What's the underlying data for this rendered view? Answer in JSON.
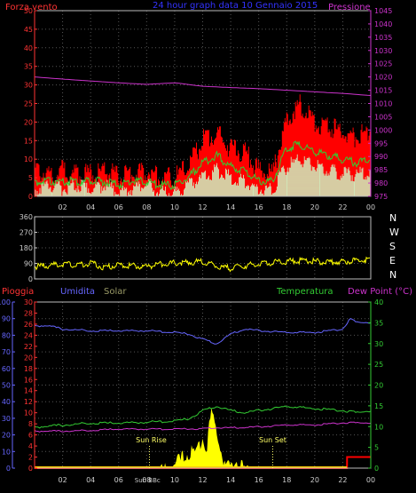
{
  "header": {
    "left": "Forza vento",
    "center": "24 hour graph data  10 Gennaio 2015",
    "right": "Pressione"
  },
  "panel2_dirs": [
    "N",
    "W",
    "S",
    "E",
    "N"
  ],
  "panel3_labels": {
    "pioggia": "Pioggia",
    "umidita": "Umidita",
    "solar": "Solar",
    "temperatura": "Temperatura",
    "dewpoint": "Dew Point (°C)",
    "sunrise": "Sun Rise",
    "sunset": "Sun Set",
    "sunbbc": "Sun BBc"
  },
  "colors": {
    "wind_gust": "#ff0000",
    "wind_avg": "#33cc33",
    "wind_min": "#ccffcc",
    "pressure": "#cc33cc",
    "direction": "#ffff00",
    "humidity": "#6666ff",
    "temperature": "#33cc33",
    "dewpoint": "#cc33cc",
    "solar": "#ffff00",
    "rain": "#ff0000",
    "axis_left_top": "#ff3333",
    "axis_right_top": "#cc33cc",
    "axis_humidity": "#6666ff",
    "axis_rain": "#ff3333",
    "axis_temp": "#33cc33",
    "header_center": "#3333ff"
  },
  "chart_data": [
    {
      "type": "area",
      "title": "24 hour graph data  10 Gennaio 2015",
      "x_ticks": [
        "02",
        "04",
        "06",
        "08",
        "10",
        "12",
        "14",
        "16",
        "18",
        "20",
        "22",
        "00"
      ],
      "y_left": {
        "label": "Forza vento",
        "ticks": [
          0,
          5,
          10,
          15,
          20,
          25,
          30,
          35,
          40,
          45,
          50
        ],
        "range": [
          0,
          50
        ]
      },
      "y_right": {
        "label": "Pressione",
        "ticks": [
          975,
          980,
          985,
          990,
          995,
          1000,
          1005,
          1010,
          1015,
          1020,
          1025,
          1030,
          1035,
          1040,
          1045
        ],
        "range": [
          975,
          1045
        ]
      },
      "series": [
        {
          "name": "gust",
          "hours": [
            0,
            1,
            2,
            3,
            4,
            5,
            6,
            7,
            8,
            9,
            10,
            11,
            12,
            13,
            14,
            15,
            16,
            17,
            18,
            19,
            20,
            21,
            22,
            23,
            24
          ],
          "values": [
            7,
            6,
            7,
            6,
            6,
            7,
            5,
            6,
            7,
            5,
            5,
            8,
            15,
            17,
            13,
            12,
            7,
            6,
            21,
            25,
            20,
            19,
            17,
            16,
            18
          ]
        },
        {
          "name": "average",
          "hours": [
            0,
            1,
            2,
            3,
            4,
            5,
            6,
            7,
            8,
            9,
            10,
            11,
            12,
            13,
            14,
            15,
            16,
            17,
            18,
            19,
            20,
            21,
            22,
            23,
            24
          ],
          "values": [
            4,
            4,
            4,
            4,
            4,
            4,
            3,
            4,
            4,
            3,
            3,
            5,
            9,
            11,
            8,
            7,
            4,
            4,
            13,
            14,
            12,
            11,
            10,
            9,
            10
          ]
        },
        {
          "name": "min",
          "hours": [
            0,
            1,
            2,
            3,
            4,
            5,
            6,
            7,
            8,
            9,
            10,
            11,
            12,
            13,
            14,
            15,
            16,
            17,
            18,
            19,
            20,
            21,
            22,
            23,
            24
          ],
          "values": [
            2,
            3,
            2,
            3,
            2,
            3,
            1,
            2,
            3,
            1,
            1,
            3,
            5,
            7,
            5,
            4,
            2,
            2,
            8,
            10,
            8,
            7,
            6,
            6,
            6
          ]
        },
        {
          "name": "pressure",
          "hours": [
            0,
            2,
            4,
            6,
            8,
            10,
            12,
            14,
            16,
            18,
            20,
            22,
            24
          ],
          "values": [
            1020,
            1019.2,
            1018.5,
            1017.8,
            1017.2,
            1017.8,
            1016.5,
            1016,
            1015.6,
            1015,
            1014.4,
            1013.8,
            1013
          ]
        }
      ]
    },
    {
      "type": "line",
      "x_ticks": [
        "02",
        "04",
        "06",
        "08",
        "10",
        "12",
        "14",
        "16",
        "18",
        "20",
        "22",
        "00"
      ],
      "y": {
        "ticks": [
          0,
          90,
          180,
          270,
          360
        ],
        "range": [
          0,
          360
        ]
      },
      "series": [
        {
          "name": "direction",
          "hours": [
            0,
            1,
            2,
            3,
            4,
            5,
            6,
            7,
            8,
            9,
            10,
            11,
            12,
            13,
            14,
            15,
            16,
            17,
            18,
            19,
            20,
            21,
            22,
            23,
            24
          ],
          "values": [
            80,
            85,
            95,
            90,
            100,
            75,
            90,
            85,
            80,
            95,
            100,
            105,
            110,
            80,
            70,
            85,
            100,
            105,
            110,
            115,
            110,
            105,
            110,
            115,
            120
          ]
        }
      ]
    },
    {
      "type": "line",
      "x_ticks": [
        "02",
        "04",
        "06",
        "08",
        "10",
        "12",
        "14",
        "16",
        "18",
        "20",
        "22",
        "00"
      ],
      "y_humidity": {
        "label": "Umidita",
        "ticks": [
          0,
          10,
          20,
          30,
          40,
          50,
          60,
          70,
          80,
          90,
          100
        ],
        "range": [
          0,
          100
        ]
      },
      "y_rain": {
        "label": "Pioggia",
        "ticks": [
          0,
          2,
          4,
          6,
          8,
          10,
          12,
          14,
          16,
          18,
          20,
          22,
          24,
          26,
          28,
          30
        ],
        "range": [
          0,
          30
        ]
      },
      "y_temp": {
        "label": "Temperatura",
        "ticks": [
          0,
          5,
          10,
          15,
          20,
          25,
          30,
          35,
          40
        ],
        "range": [
          0,
          40
        ]
      },
      "series": [
        {
          "name": "humidity",
          "hours": [
            0,
            1,
            2,
            4,
            6,
            8,
            10,
            11,
            12,
            13,
            14,
            15,
            16,
            18,
            20,
            22,
            22.5,
            23,
            24
          ],
          "values": [
            86,
            86,
            84,
            83,
            83,
            83,
            82,
            81,
            78,
            75,
            81,
            84,
            83,
            82,
            82,
            84,
            90,
            88,
            88
          ]
        },
        {
          "name": "temperature",
          "hours": [
            0,
            2,
            4,
            6,
            8,
            10,
            11,
            12,
            13,
            14,
            15,
            16,
            18,
            20,
            22,
            23,
            24
          ],
          "values": [
            10,
            10.5,
            11,
            11,
            11.2,
            11.5,
            12,
            14,
            15,
            14,
            13.5,
            14,
            15,
            14.5,
            14,
            13.5,
            14
          ]
        },
        {
          "name": "dewpoint",
          "hours": [
            0,
            2,
            4,
            6,
            8,
            10,
            12,
            13,
            14,
            16,
            18,
            20,
            22,
            24
          ],
          "values": [
            9,
            9,
            9.2,
            9.5,
            9.5,
            9.5,
            9.6,
            9.8,
            9.8,
            10,
            10.5,
            10.5,
            11,
            11
          ]
        },
        {
          "name": "solar",
          "hours": [
            9,
            9.5,
            10,
            10.5,
            11,
            11.5,
            12,
            12.3,
            12.6,
            13,
            13.3,
            13.6,
            14,
            14.3,
            14.6,
            15,
            15.3
          ],
          "values": [
            0,
            1,
            2,
            3,
            5,
            4,
            9,
            6,
            14,
            10,
            6,
            2,
            1,
            3,
            2,
            1,
            0
          ]
        },
        {
          "name": "rain",
          "hours": [
            0,
            22.3,
            22.31,
            24
          ],
          "values": [
            0,
            0,
            2,
            2
          ]
        }
      ],
      "annotations": [
        {
          "text": "Sun Rise",
          "hour": 8.2
        },
        {
          "text": "Sun Set",
          "hour": 17
        },
        {
          "text": "Sun BBc",
          "hour": 7.3
        }
      ]
    }
  ]
}
